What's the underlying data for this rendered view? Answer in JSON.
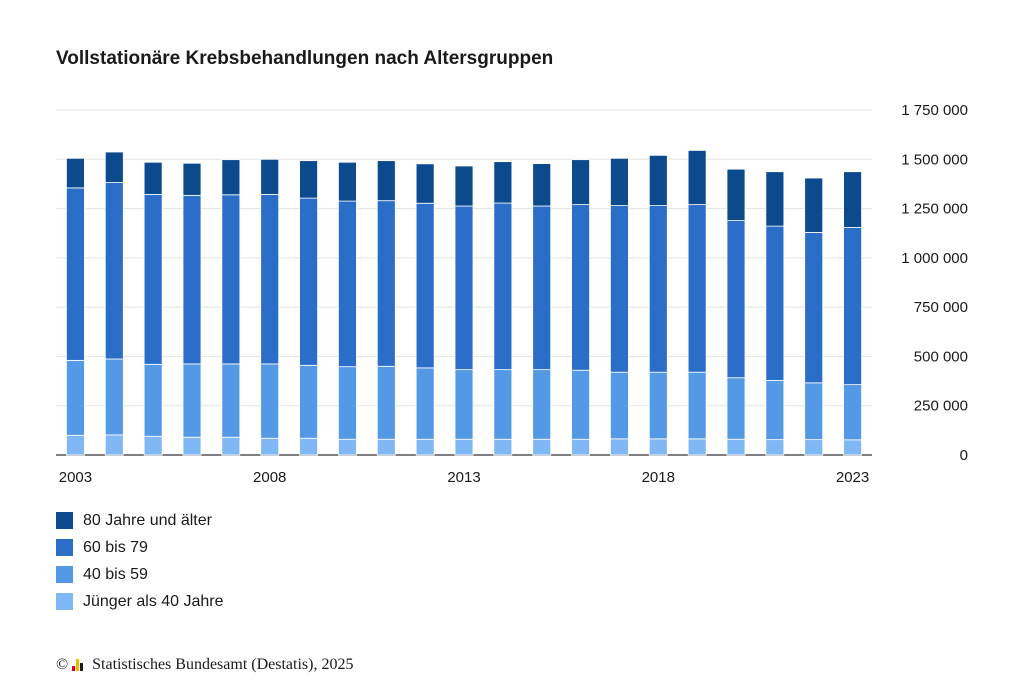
{
  "chart_data": {
    "type": "bar",
    "stacked": true,
    "title": "Vollstationäre Krebsbehandlungen nach Altersgruppen",
    "categories": [
      "2003",
      "2004",
      "2005",
      "2006",
      "2007",
      "2008",
      "2009",
      "2010",
      "2011",
      "2012",
      "2013",
      "2014",
      "2015",
      "2016",
      "2017",
      "2018",
      "2019",
      "2020",
      "2021",
      "2022",
      "2023"
    ],
    "x_tick_labels": [
      "2003",
      "2008",
      "2013",
      "2018",
      "2023"
    ],
    "y_ticks": [
      "0",
      "250 000",
      "500 000",
      "750 000",
      "1 000 000",
      "1 250 000",
      "1 500 000",
      "1 750 000"
    ],
    "ylim": [
      0,
      1750000
    ],
    "y_axis_position": "right",
    "grid": true,
    "legend_position": "bottom-left",
    "series": [
      {
        "name": "Jünger als 40 Jahre",
        "color": "#7fb8f5",
        "values": [
          100000,
          102000,
          95000,
          90000,
          90000,
          85000,
          85000,
          80000,
          80000,
          80000,
          80000,
          80000,
          80000,
          80000,
          82000,
          82000,
          82000,
          80000,
          78000,
          78000,
          77000
        ]
      },
      {
        "name": "40 bis 59",
        "color": "#5399e6",
        "values": [
          380000,
          385000,
          365000,
          372000,
          372000,
          377000,
          370000,
          368000,
          370000,
          362000,
          353000,
          353000,
          353000,
          350000,
          338000,
          338000,
          338000,
          312000,
          300000,
          288000,
          280000
        ]
      },
      {
        "name": "60 bis 79",
        "color": "#2a6ec7",
        "values": [
          875000,
          895000,
          862000,
          855000,
          858000,
          860000,
          848000,
          840000,
          840000,
          835000,
          830000,
          845000,
          830000,
          840000,
          845000,
          845000,
          850000,
          797000,
          783000,
          763000,
          797000
        ]
      },
      {
        "name": "80 Jahre und älter",
        "color": "#0b4a8c",
        "values": [
          150000,
          155000,
          163000,
          163000,
          178000,
          178000,
          190000,
          197000,
          203000,
          200000,
          203000,
          210000,
          215000,
          228000,
          240000,
          255000,
          275000,
          261000,
          276000,
          276000,
          283000
        ]
      }
    ],
    "legend_order": [
      "80 Jahre und älter",
      "60 bis 79",
      "40 bis 59",
      "Jünger als 40 Jahre"
    ]
  },
  "source": {
    "copyright": "©",
    "text": "Statistisches Bundesamt (Destatis), 2025"
  },
  "logo_colors": [
    "#e3001b",
    "#f3b800",
    "#1a1a1a"
  ]
}
